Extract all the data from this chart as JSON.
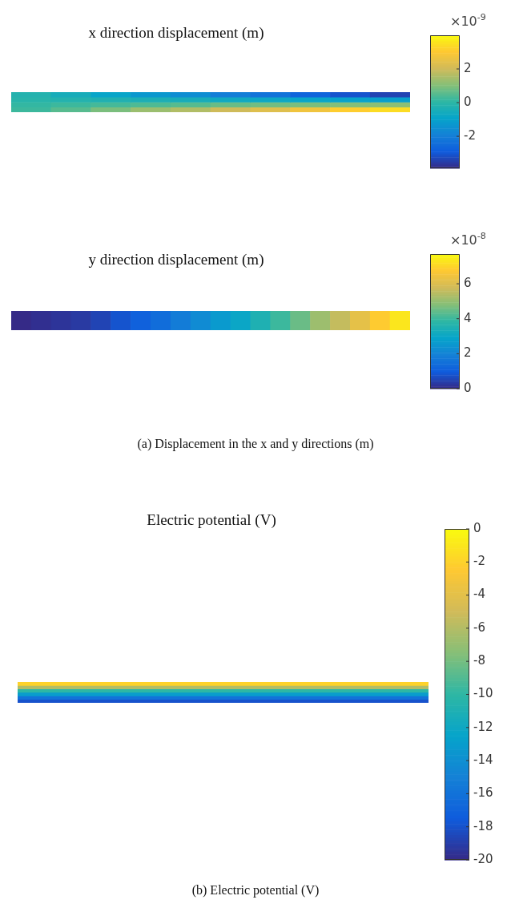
{
  "chart_data": [
    {
      "type": "heatmap",
      "title": "x direction displacement (m)",
      "categories": [
        null,
        null,
        null,
        null,
        null,
        null,
        null,
        null,
        null,
        null
      ],
      "y_categories": [
        null,
        null,
        null,
        null
      ],
      "cells": [
        [
          -0.2,
          -0.5,
          -0.9,
          -1.3,
          -1.6,
          -2.0,
          -2.3,
          -2.7,
          -3.1,
          -3.4
        ],
        [
          -0.1,
          -0.2,
          -0.3,
          -0.4,
          -0.5,
          -0.7,
          -0.8,
          -0.9,
          -1.0,
          -1.1
        ],
        [
          0.1,
          0.2,
          0.3,
          0.4,
          0.5,
          0.7,
          0.8,
          0.9,
          1.0,
          1.1
        ],
        [
          0.2,
          0.5,
          0.9,
          1.3,
          1.6,
          2.0,
          2.3,
          2.7,
          3.1,
          3.4
        ]
      ],
      "clim": [
        -3.9,
        4
      ],
      "cticks": [
        2,
        0,
        -2
      ],
      "clabel": "×10$^{-9}$",
      "tick_labels": false
    },
    {
      "type": "heatmap",
      "title": "y direction displacement (m)",
      "categories": [
        null,
        null,
        null,
        null,
        null,
        null,
        null,
        null,
        null,
        null,
        null,
        null,
        null,
        null,
        null,
        null,
        null,
        null,
        null,
        null
      ],
      "y_categories": [
        null
      ],
      "cells": [
        [
          0.0,
          0.1,
          0.2,
          0.3,
          0.5,
          0.8,
          1.1,
          1.4,
          1.8,
          2.2,
          2.6,
          3.0,
          3.5,
          4.0,
          4.5,
          5.1,
          5.6,
          6.2,
          6.8,
          7.3
        ]
      ],
      "clim": [
        0,
        7.7
      ],
      "cticks": [
        6,
        4,
        2,
        0
      ],
      "clabel": "×10$^{-8}$",
      "tick_labels": false,
      "annotations": [
        "(a) Displacement in the x and y directions (m)"
      ]
    },
    {
      "type": "heatmap",
      "title": "Electric potential (V)",
      "categories": [
        null
      ],
      "y_categories": [
        null,
        null,
        null,
        null,
        null,
        null
      ],
      "cells": [
        [
          -2
        ],
        [
          -6
        ],
        [
          -10
        ],
        [
          -13
        ],
        [
          -16
        ],
        [
          -18
        ]
      ],
      "clim": [
        -20,
        0
      ],
      "cticks": [
        0,
        -2,
        -4,
        -6,
        -8,
        -10,
        -12,
        -14,
        -16,
        -18,
        -20
      ],
      "tick_labels": false,
      "annotations": [
        "(b) Electric potential (V)"
      ]
    }
  ]
}
